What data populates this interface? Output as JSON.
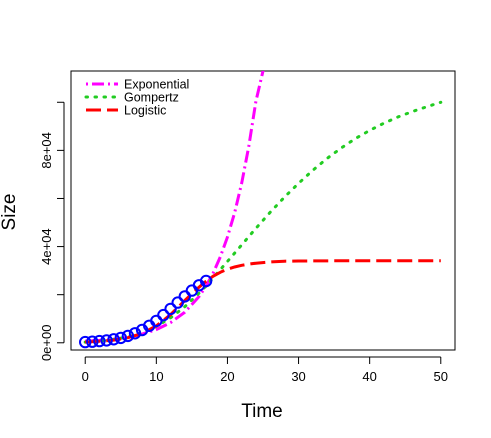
{
  "chart_data": {
    "type": "line",
    "xlabel": "Time",
    "ylabel": "Size",
    "xlim": [
      -2,
      52
    ],
    "ylim": [
      -3000,
      113000
    ],
    "x_ticks": [
      0,
      10,
      20,
      30,
      40,
      50
    ],
    "y_ticks": [
      0,
      40000,
      80000
    ],
    "y_tick_labels": [
      "0e+00",
      "4e+04",
      "8e+04"
    ],
    "y_minor_ticks": [
      20000,
      60000,
      100000
    ],
    "grid": false,
    "legend": {
      "position": "top-left",
      "entries": [
        "Exponential",
        "Gompertz",
        "Logistic"
      ]
    },
    "observed": {
      "marker": "open-circle",
      "color": "#0000ff",
      "x": [
        0,
        1,
        2,
        3,
        4,
        5,
        6,
        7,
        8,
        9,
        10,
        11,
        12,
        13,
        14,
        15,
        16,
        17
      ],
      "y": [
        300,
        450,
        700,
        1000,
        1450,
        2050,
        2850,
        3950,
        5300,
        7050,
        9100,
        11500,
        14100,
        16700,
        19300,
        21700,
        23900,
        25700
      ]
    },
    "series": [
      {
        "name": "Exponential",
        "color": "#ff00ff",
        "dash": "dot-dash",
        "x": [
          0,
          2,
          4,
          6,
          8,
          10,
          12,
          14,
          16,
          17,
          18,
          19,
          20,
          21,
          22,
          23,
          24,
          25,
          25.5
        ],
        "y": [
          700,
          1000,
          1500,
          2300,
          3600,
          5500,
          8400,
          12700,
          19200,
          23600,
          29000,
          35700,
          43900,
          54000,
          66400,
          81700,
          100400,
          113000,
          125000
        ]
      },
      {
        "name": "Gompertz",
        "color": "#22cc22",
        "dash": "dotted",
        "x": [
          0,
          2,
          4,
          6,
          8,
          10,
          12,
          14,
          16,
          17,
          18,
          20,
          22,
          24,
          26,
          28,
          30,
          32,
          34,
          36,
          38,
          40,
          42,
          44,
          46,
          48,
          50
        ],
        "y": [
          300,
          700,
          1400,
          2500,
          4200,
          6800,
          10400,
          15000,
          20600,
          23700,
          27000,
          33800,
          40700,
          47600,
          54200,
          60500,
          66300,
          71700,
          76600,
          81000,
          84900,
          88300,
          91300,
          93900,
          96100,
          98100,
          100000
        ]
      },
      {
        "name": "Logistic",
        "color": "#ff0000",
        "dash": "long-dash",
        "x": [
          0,
          2,
          4,
          6,
          8,
          10,
          12,
          14,
          16,
          17,
          18,
          19,
          20,
          21,
          22,
          23,
          24,
          26,
          28,
          30,
          35,
          40,
          45,
          50
        ],
        "y": [
          300,
          600,
          1100,
          2100,
          3900,
          7000,
          11700,
          17600,
          23100,
          25600,
          27700,
          29300,
          30600,
          31500,
          32200,
          32700,
          33100,
          33600,
          33900,
          34000,
          34100,
          34100,
          34100,
          34100
        ]
      }
    ]
  }
}
